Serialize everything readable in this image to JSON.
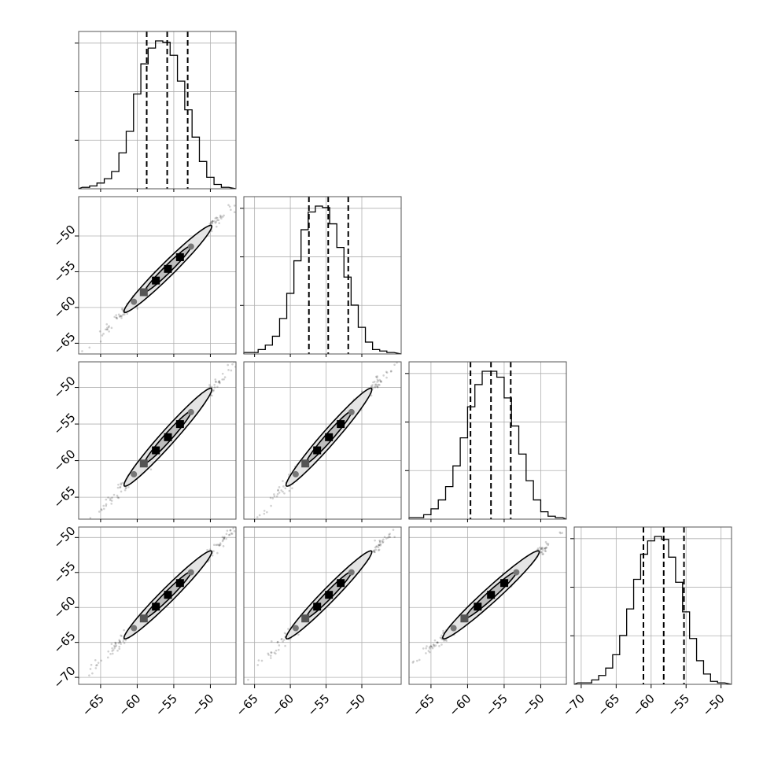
{
  "chart_data": {
    "type": "corner",
    "title": "",
    "parameters": [
      {
        "index": 0,
        "label": "",
        "range": [
          -68,
          -46.5
        ],
        "mean": -55.8,
        "sigma": 3.0,
        "quantiles": [
          -58.7,
          -55.9,
          -53.1
        ],
        "ticks": [
          -65,
          -60,
          -55,
          -50
        ]
      },
      {
        "index": 1,
        "label": "",
        "range": [
          -66.5,
          -44.5
        ],
        "mean": -54.6,
        "sigma": 3.0,
        "quantiles": [
          -57.4,
          -54.7,
          -51.9
        ],
        "ticks": [
          -65,
          -60,
          -55,
          -50
        ]
      },
      {
        "index": 2,
        "label": "",
        "range": [
          -68,
          -46.5
        ],
        "mean": -56.8,
        "sigma": 3.3,
        "quantiles": [
          -59.6,
          -56.8,
          -54.1
        ],
        "ticks": [
          -65,
          -60,
          -55,
          -50
        ]
      },
      {
        "index": 3,
        "label": "",
        "range": [
          -71,
          -48.5
        ],
        "mean": -58.2,
        "sigma": 3.1,
        "quantiles": [
          -61.1,
          -58.2,
          -55.3
        ],
        "ticks": [
          -70,
          -65,
          -60,
          -55,
          -50
        ]
      }
    ],
    "histograms": [
      {
        "param": 0,
        "bin_edges": [
          -67.5,
          -66.5,
          -65.5,
          -64.5,
          -63.5,
          -62.5,
          -61.5,
          -60.5,
          -59.5,
          -58.5,
          -57.5,
          -56.5,
          -55.5,
          -54.5,
          -53.5,
          -52.5,
          -51.5,
          -50.5,
          -49.5,
          -48.5,
          -47.5
        ],
        "counts": [
          1,
          2,
          4,
          7,
          12,
          25,
          40,
          66,
          87,
          98,
          103,
          102,
          93,
          75,
          55,
          36,
          19,
          8,
          3,
          1
        ]
      },
      {
        "param": 1,
        "bin_edges": [
          -66.5,
          -65.5,
          -64.5,
          -63.5,
          -62.5,
          -61.5,
          -60.5,
          -59.5,
          -58.5,
          -57.5,
          -56.5,
          -55.5,
          -54.5,
          -53.5,
          -52.5,
          -51.5,
          -50.5,
          -49.5,
          -48.5,
          -47.5,
          -46.5,
          -45.5
        ],
        "counts": [
          1,
          1,
          3,
          6,
          12,
          24,
          41,
          63,
          84,
          96,
          100,
          99,
          88,
          72,
          52,
          33,
          18,
          8,
          3,
          2,
          1
        ]
      },
      {
        "param": 2,
        "bin_edges": [
          -68,
          -67,
          -66,
          -65,
          -64,
          -63,
          -62,
          -61,
          -60,
          -59,
          -58,
          -57,
          -56,
          -55,
          -54,
          -53,
          -52,
          -51,
          -50,
          -49,
          -48,
          -47
        ],
        "counts": [
          1,
          1,
          3,
          7,
          13,
          22,
          36,
          55,
          76,
          91,
          100,
          100,
          96,
          82,
          63,
          44,
          26,
          13,
          5,
          2,
          1
        ]
      },
      {
        "param": 3,
        "bin_edges": [
          -70.5,
          -69.5,
          -68.5,
          -67.5,
          -66.5,
          -65.5,
          -64.5,
          -63.5,
          -62.5,
          -61.5,
          -60.5,
          -59.5,
          -58.5,
          -57.5,
          -56.5,
          -55.5,
          -54.5,
          -53.5,
          -52.5,
          -51.5,
          -50.5,
          -49.5
        ],
        "counts": [
          1,
          1,
          3,
          6,
          11,
          20,
          33,
          51,
          71,
          88,
          97,
          100,
          98,
          86,
          69,
          49,
          31,
          16,
          7,
          2,
          1
        ]
      }
    ],
    "pair_correlation": 0.99,
    "grid": true,
    "quantile_lines": "dashed"
  }
}
